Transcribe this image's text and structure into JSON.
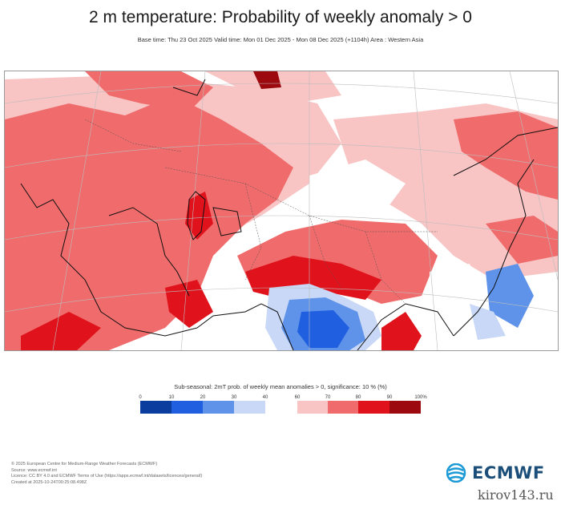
{
  "header": {
    "title": "2 m temperature: Probability of weekly anomaly > 0",
    "subtitle": "Base time: Thu 23 Oct 2025 Valid time: Mon 01 Dec 2025 - Mon 08 Dec 2025 (+1104h) Area : Western Asia"
  },
  "legend": {
    "title": "Sub-seasonal: 2mT prob. of weekly mean anomalies > 0, significance: 10 % (%)",
    "ticks": [
      "0",
      "10",
      "20",
      "30",
      "40",
      "60",
      "70",
      "80",
      "90",
      "100%"
    ],
    "bins": [
      {
        "range": "0-10",
        "color": "#0a3d9e"
      },
      {
        "range": "10-20",
        "color": "#1f5fe0"
      },
      {
        "range": "20-30",
        "color": "#5f93ea"
      },
      {
        "range": "30-40",
        "color": "#c8d8f6"
      },
      {
        "range": "40-60",
        "color": "#ffffff"
      },
      {
        "range": "60-70",
        "color": "#f8c4c4"
      },
      {
        "range": "70-80",
        "color": "#f06b6b"
      },
      {
        "range": "80-90",
        "color": "#e0121c"
      },
      {
        "range": "90-100",
        "color": "#9c0a10"
      }
    ]
  },
  "footer": {
    "lines": [
      "© 2025 European Centre for Medium-Range Weather Forecasts (ECMWF)",
      "Source: www.ecmwf.int",
      "Licence: CC BY 4.0 and ECMWF Terms of Use (https://apps.ecmwf.int/datasets/licences/general/)",
      "Created at 2025-10-24T00:25:08.498Z"
    ]
  },
  "logo": {
    "text": "ECMWF"
  },
  "watermark": "kirov143.ru"
}
